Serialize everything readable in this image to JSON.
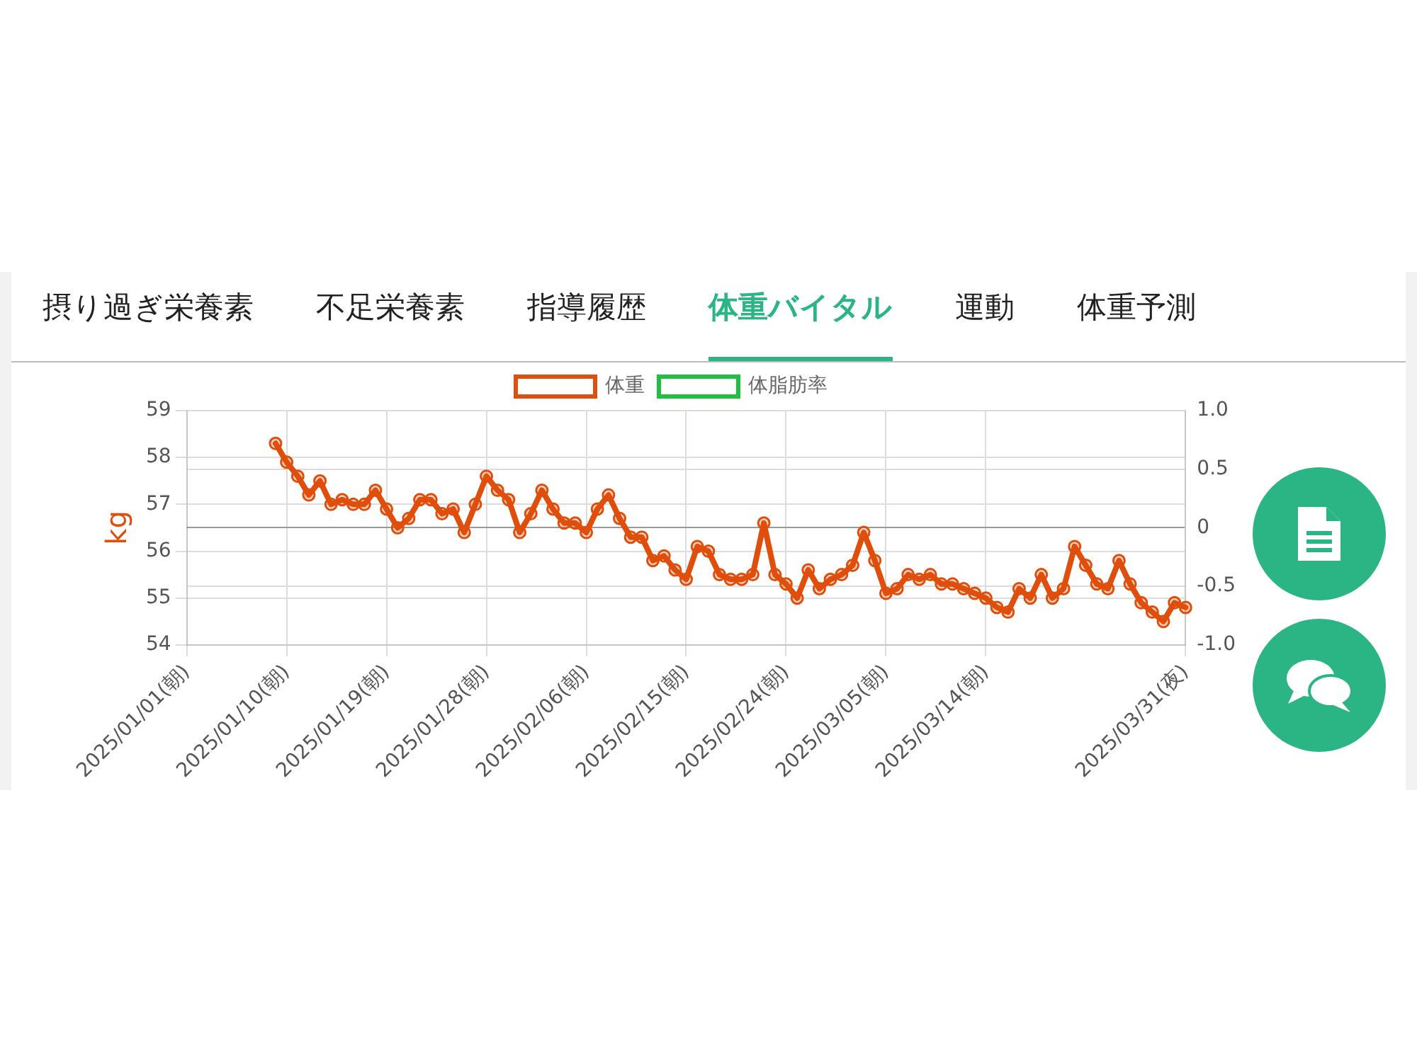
{
  "chart_data": {
    "type": "line",
    "annotations": [
      "摂り過ぎ栄養素",
      "不足栄養素",
      "指導履歴",
      "体重バイタル",
      "運動",
      "体重予測"
    ],
    "ylabel": "kg",
    "categories": [
      "2025/01/01(朝)",
      null,
      null,
      null,
      null,
      null,
      null,
      null,
      null,
      "2025/01/10(朝)",
      null,
      null,
      null,
      null,
      null,
      null,
      null,
      null,
      "2025/01/19(朝)",
      null,
      null,
      null,
      null,
      null,
      null,
      null,
      null,
      "2025/01/28(朝)",
      null,
      null,
      null,
      null,
      null,
      null,
      null,
      null,
      "2025/02/06(朝)",
      null,
      null,
      null,
      null,
      null,
      null,
      null,
      null,
      "2025/02/15(朝)",
      null,
      null,
      null,
      null,
      null,
      null,
      null,
      null,
      "2025/02/24(朝)",
      null,
      null,
      null,
      null,
      null,
      null,
      null,
      null,
      "2025/03/05(朝)",
      null,
      null,
      null,
      null,
      null,
      null,
      null,
      null,
      "2025/03/14(朝)",
      null,
      null,
      null,
      null,
      null,
      null,
      null,
      null,
      null,
      null,
      null,
      null,
      null,
      null,
      null,
      null,
      null,
      "2025/03/31(夜)"
    ],
    "series": [
      {
        "name": "体重",
        "color": "#e04e0c",
        "values": [
          null,
          null,
          null,
          null,
          null,
          null,
          null,
          null,
          58.3,
          57.9,
          57.6,
          57.2,
          57.5,
          57.0,
          57.1,
          57.0,
          57.0,
          57.3,
          56.9,
          56.5,
          56.7,
          57.1,
          57.1,
          56.8,
          56.9,
          56.4,
          57.0,
          57.6,
          57.3,
          57.1,
          56.4,
          56.8,
          57.3,
          56.9,
          56.6,
          56.6,
          56.4,
          56.9,
          57.2,
          56.7,
          56.3,
          56.3,
          55.8,
          55.9,
          55.6,
          55.4,
          56.1,
          56.0,
          55.5,
          55.4,
          55.4,
          55.5,
          56.6,
          55.5,
          55.3,
          55.0,
          55.6,
          55.2,
          55.4,
          55.5,
          55.7,
          56.4,
          55.8,
          55.1,
          55.2,
          55.5,
          55.4,
          55.5,
          55.3,
          55.3,
          55.2,
          55.1,
          55.0,
          54.8,
          54.7,
          55.2,
          55.0,
          55.5,
          55.0,
          55.2,
          56.1,
          55.7,
          55.3,
          55.2,
          55.8,
          55.3,
          54.9,
          54.7,
          54.5,
          54.9,
          54.8
        ]
      },
      {
        "name": "体脂肪率",
        "color": "#1fbf3f",
        "axis": "y2",
        "values": [
          null,
          null,
          null,
          null,
          null,
          null,
          null,
          null,
          null,
          null,
          null,
          null,
          null,
          null,
          null,
          null,
          null,
          null,
          null,
          null,
          null,
          null,
          null,
          null,
          null,
          null,
          null,
          null,
          null,
          null,
          null,
          null,
          null,
          null,
          null,
          null,
          null,
          null,
          null,
          null,
          null,
          null,
          null,
          null,
          null,
          null,
          null,
          null,
          null,
          null,
          null,
          null,
          null,
          null,
          null,
          null,
          null,
          null,
          null,
          null,
          null,
          null,
          null,
          null,
          null,
          null,
          null,
          null,
          null,
          null,
          null,
          null,
          null,
          null,
          null,
          null,
          null,
          null,
          null,
          null,
          null,
          null,
          null,
          null,
          null,
          null,
          null,
          null,
          null,
          null,
          null
        ]
      }
    ],
    "ylim": [
      54,
      59
    ],
    "yticks": [
      54,
      55,
      56,
      57,
      58,
      59
    ],
    "y2lim": [
      -1,
      1
    ],
    "y2ticks": [
      {
        "value": -1,
        "label": "-1.0"
      },
      {
        "value": -0.5,
        "label": "-0.5"
      },
      0,
      {
        "value": 0.5,
        "label": "0.5"
      },
      {
        "value": 1,
        "label": "1.0"
      }
    ],
    "grid": true,
    "legend": "top",
    "marker": "circle",
    "line_style": "solid"
  }
}
